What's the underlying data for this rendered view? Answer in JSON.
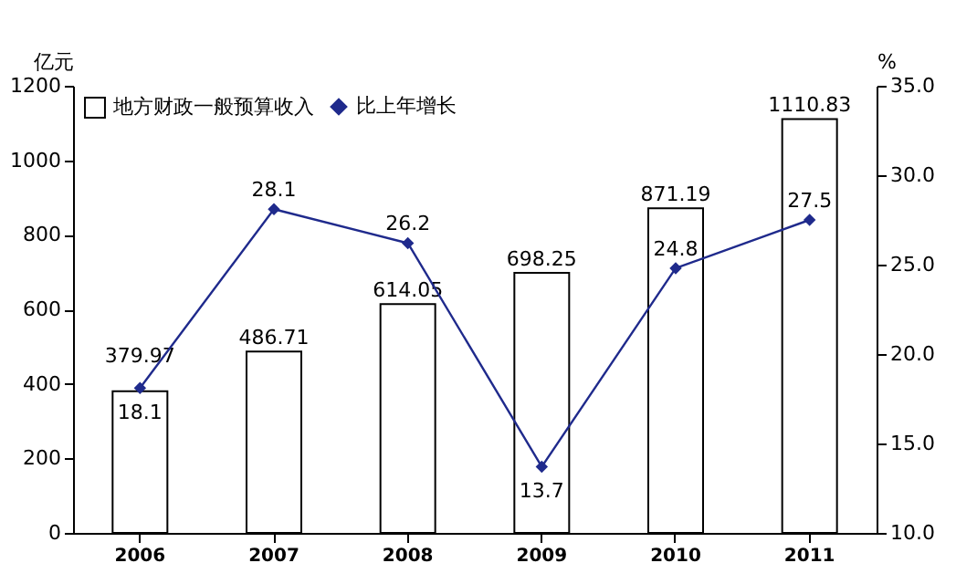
{
  "chart_data": {
    "type": "bar",
    "categories": [
      "2006",
      "2007",
      "2008",
      "2009",
      "2010",
      "2011"
    ],
    "ylabel": "亿元",
    "y2label": "%",
    "series": [
      {
        "name": "地方财政一般预算收入",
        "color": "#ffffff",
        "values": [
          379.97,
          486.71,
          614.05,
          698.25,
          871.19,
          1110.83
        ]
      },
      {
        "name": "比上年增长",
        "type": "line",
        "axis": "y2",
        "color": "#1f2a8c",
        "values": [
          18.1,
          28.1,
          26.2,
          13.7,
          24.8,
          27.5
        ]
      }
    ],
    "ylim": [
      0,
      1200
    ],
    "yticks": [
      0,
      200,
      400,
      600,
      800,
      1000,
      1200
    ],
    "y2lim": [
      10,
      35
    ],
    "y2ticks": [
      {
        "value": 10,
        "label": "10.0"
      },
      {
        "value": 15,
        "label": "15.0"
      },
      {
        "value": 20,
        "label": "20.0"
      },
      {
        "value": 25,
        "label": "25.0"
      },
      {
        "value": 30,
        "label": "30.0"
      },
      {
        "value": 35,
        "label": "35.0"
      }
    ],
    "data_labels": true,
    "legend": "top left",
    "marker": "diamond",
    "line_style": "solid",
    "grid": false
  }
}
